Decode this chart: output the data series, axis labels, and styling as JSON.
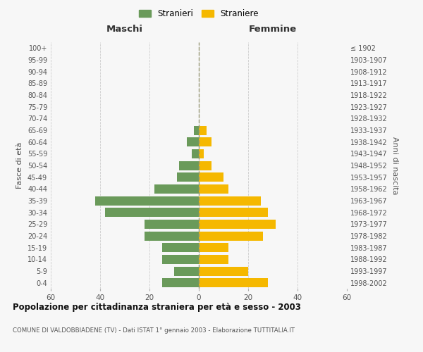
{
  "age_groups": [
    "0-4",
    "5-9",
    "10-14",
    "15-19",
    "20-24",
    "25-29",
    "30-34",
    "35-39",
    "40-44",
    "45-49",
    "50-54",
    "55-59",
    "60-64",
    "65-69",
    "70-74",
    "75-79",
    "80-84",
    "85-89",
    "90-94",
    "95-99",
    "100+"
  ],
  "birth_years": [
    "1998-2002",
    "1993-1997",
    "1988-1992",
    "1983-1987",
    "1978-1982",
    "1973-1977",
    "1968-1972",
    "1963-1967",
    "1958-1962",
    "1953-1957",
    "1948-1952",
    "1943-1947",
    "1938-1942",
    "1933-1937",
    "1928-1932",
    "1923-1927",
    "1918-1922",
    "1913-1917",
    "1908-1912",
    "1903-1907",
    "≤ 1902"
  ],
  "maschi": [
    15,
    10,
    15,
    15,
    22,
    22,
    38,
    42,
    18,
    9,
    8,
    3,
    5,
    2,
    0,
    0,
    0,
    0,
    0,
    0,
    0
  ],
  "femmine": [
    28,
    20,
    12,
    12,
    26,
    31,
    28,
    25,
    12,
    10,
    5,
    2,
    5,
    3,
    0,
    0,
    0,
    0,
    0,
    0,
    0
  ],
  "maschi_color": "#6a9a5a",
  "femmine_color": "#f5b800",
  "title": "Popolazione per cittadinanza straniera per età e sesso - 2003",
  "subtitle": "COMUNE DI VALDOBBIADENE (TV) - Dati ISTAT 1° gennaio 2003 - Elaborazione TUTTITALIA.IT",
  "xlabel_left": "Maschi",
  "xlabel_right": "Femmine",
  "ylabel_left": "Fasce di età",
  "ylabel_right": "Anni di nascita",
  "legend_stranieri": "Stranieri",
  "legend_straniere": "Straniere",
  "xlim": 60,
  "background_color": "#f7f7f7",
  "grid_color": "#cccccc"
}
